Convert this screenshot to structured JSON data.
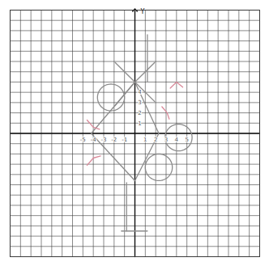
{
  "chart_data": {
    "type": "line",
    "y_label": "Y",
    "xlim": [
      -12,
      12
    ],
    "ylim": [
      -12,
      12
    ],
    "xticks": [
      -12,
      -11,
      -10,
      -9,
      -8,
      -7,
      -6,
      -5,
      -4,
      -3,
      -2,
      -1,
      0,
      1,
      2,
      3,
      4,
      5,
      6,
      7,
      8,
      9,
      10,
      11,
      12
    ],
    "yticks": [
      -12,
      -11,
      -10,
      -9,
      -8,
      -7,
      -6,
      -5,
      -4,
      -3,
      -2,
      -1,
      0,
      1,
      2,
      3,
      4,
      5,
      6,
      7,
      8,
      9,
      10,
      11,
      12
    ],
    "grid": true,
    "tick_labels": false,
    "axis_numbers": {
      "x": [
        -5,
        -4,
        -3,
        -2,
        -1,
        1,
        2,
        3,
        4,
        5
      ],
      "y": [
        1,
        2,
        3,
        4
      ]
    },
    "series": [
      {
        "color": "#8c8c8c",
        "points": [
          [
            1.2,
            9.6
          ],
          [
            1.2,
            5.0
          ]
        ]
      },
      {
        "color": "#8c8c8c",
        "points": [
          [
            -1.9,
            6.9
          ],
          [
            0,
            5.0
          ],
          [
            1.9,
            3.1
          ]
        ]
      },
      {
        "color": "#8c8c8c",
        "points": [
          [
            1.9,
            6.9
          ],
          [
            0,
            5.0
          ],
          [
            -1.9,
            2.7
          ]
        ]
      },
      {
        "color": "#8c8c8c",
        "points": [
          [
            0,
            5.0
          ],
          [
            -4.2,
            0
          ],
          [
            0,
            -4.6
          ],
          [
            2.3,
            0
          ],
          [
            0,
            5.0
          ]
        ]
      },
      {
        "color": "#8c8c8c",
        "points": [
          [
            -0.8,
            -4.8
          ],
          [
            -0.8,
            -9.5
          ]
        ]
      },
      {
        "color": "#8c8c8c",
        "points": [
          [
            -1.3,
            -9.5
          ],
          [
            1.2,
            -9.5
          ]
        ]
      },
      {
        "color": "#d98a9a",
        "points": [
          [
            -4.6,
            1.3
          ],
          [
            -4.0,
            0.6
          ],
          [
            -3.4,
            0.4
          ]
        ]
      },
      {
        "color": "#d98a9a",
        "points": [
          [
            3.4,
            4.4
          ],
          [
            4.0,
            5.0
          ],
          [
            4.6,
            4.5
          ]
        ]
      },
      {
        "color": "#d98a9a",
        "points": [
          [
            -4.6,
            -3.1
          ],
          [
            -4.0,
            -2.4
          ],
          [
            -3.3,
            -2.2
          ]
        ]
      },
      {
        "color": "#d98a9a",
        "points": [
          [
            2.6,
            2.6
          ],
          [
            3.1,
            2.0
          ],
          [
            3.3,
            1.4
          ]
        ]
      }
    ],
    "circles": [
      {
        "cx": -2.3,
        "cy": 3.5,
        "r": 1.3,
        "color": "#8c8c8c"
      },
      {
        "cx": 4.2,
        "cy": -0.4,
        "r": 1.3,
        "color": "#8c8c8c"
      },
      {
        "cx": 2.3,
        "cy": -3.3,
        "r": 1.3,
        "color": "#8c8c8c"
      }
    ]
  }
}
